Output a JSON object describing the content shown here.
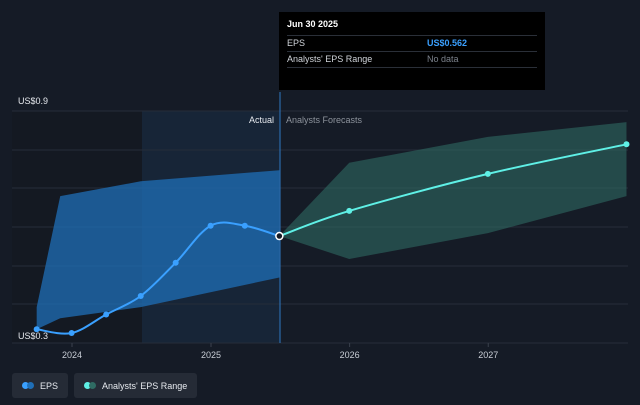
{
  "chart_data": {
    "type": "line",
    "y_ticks": [
      "US$0.9",
      "US$0.3"
    ],
    "x_ticks": [
      "2024",
      "2025",
      "2026",
      "2027"
    ],
    "ylim": [
      0.3,
      0.9
    ],
    "actual_label": "Actual",
    "forecast_label": "Analysts Forecasts",
    "series": [
      {
        "name": "EPS",
        "color": "#3aa0ff",
        "points": [
          {
            "x": "2023-09-30",
            "y": 0.31
          },
          {
            "x": "2023-12-31",
            "y": 0.3
          },
          {
            "x": "2024-03-31",
            "y": 0.35
          },
          {
            "x": "2024-06-30",
            "y": 0.4
          },
          {
            "x": "2024-09-30",
            "y": 0.49
          },
          {
            "x": "2024-12-31",
            "y": 0.59
          },
          {
            "x": "2025-03-31",
            "y": 0.59
          },
          {
            "x": "2025-06-30",
            "y": 0.562
          }
        ]
      },
      {
        "name": "EPS forecast",
        "color": "#5ff0e6",
        "points": [
          {
            "x": "2025-06-30",
            "y": 0.562
          },
          {
            "x": "2025-12-31",
            "y": 0.63
          },
          {
            "x": "2026-12-31",
            "y": 0.73
          },
          {
            "x": "2027-12-31",
            "y": 0.81
          }
        ]
      }
    ],
    "eps_range_actual": {
      "color": "#1f6fb8",
      "points": [
        {
          "x": "2023-09-30",
          "lo": 0.31,
          "hi": 0.37
        },
        {
          "x": "2023-12-01",
          "lo": 0.34,
          "hi": 0.67
        },
        {
          "x": "2024-06-30",
          "lo": 0.37,
          "hi": 0.71
        },
        {
          "x": "2025-06-30",
          "lo": 0.45,
          "hi": 0.74
        }
      ]
    },
    "eps_range_forecast": {
      "color": "#2f6b63",
      "points": [
        {
          "x": "2025-06-30",
          "lo": 0.562,
          "hi": 0.562
        },
        {
          "x": "2025-12-31",
          "lo": 0.5,
          "hi": 0.76
        },
        {
          "x": "2026-12-31",
          "lo": 0.57,
          "hi": 0.83
        },
        {
          "x": "2027-12-31",
          "lo": 0.67,
          "hi": 0.87
        }
      ]
    }
  },
  "tooltip": {
    "date": "Jun 30 2025",
    "eps_label": "EPS",
    "eps_value": "US$0.562",
    "range_label": "Analysts' EPS Range",
    "range_value": "No data"
  },
  "legend": {
    "eps_label": "EPS",
    "range_label": "Analysts' EPS Range",
    "eps_colors": [
      "#3aa0ff",
      "#1f6fb8"
    ],
    "range_colors": [
      "#5ff0e6",
      "#2f6b63"
    ]
  }
}
